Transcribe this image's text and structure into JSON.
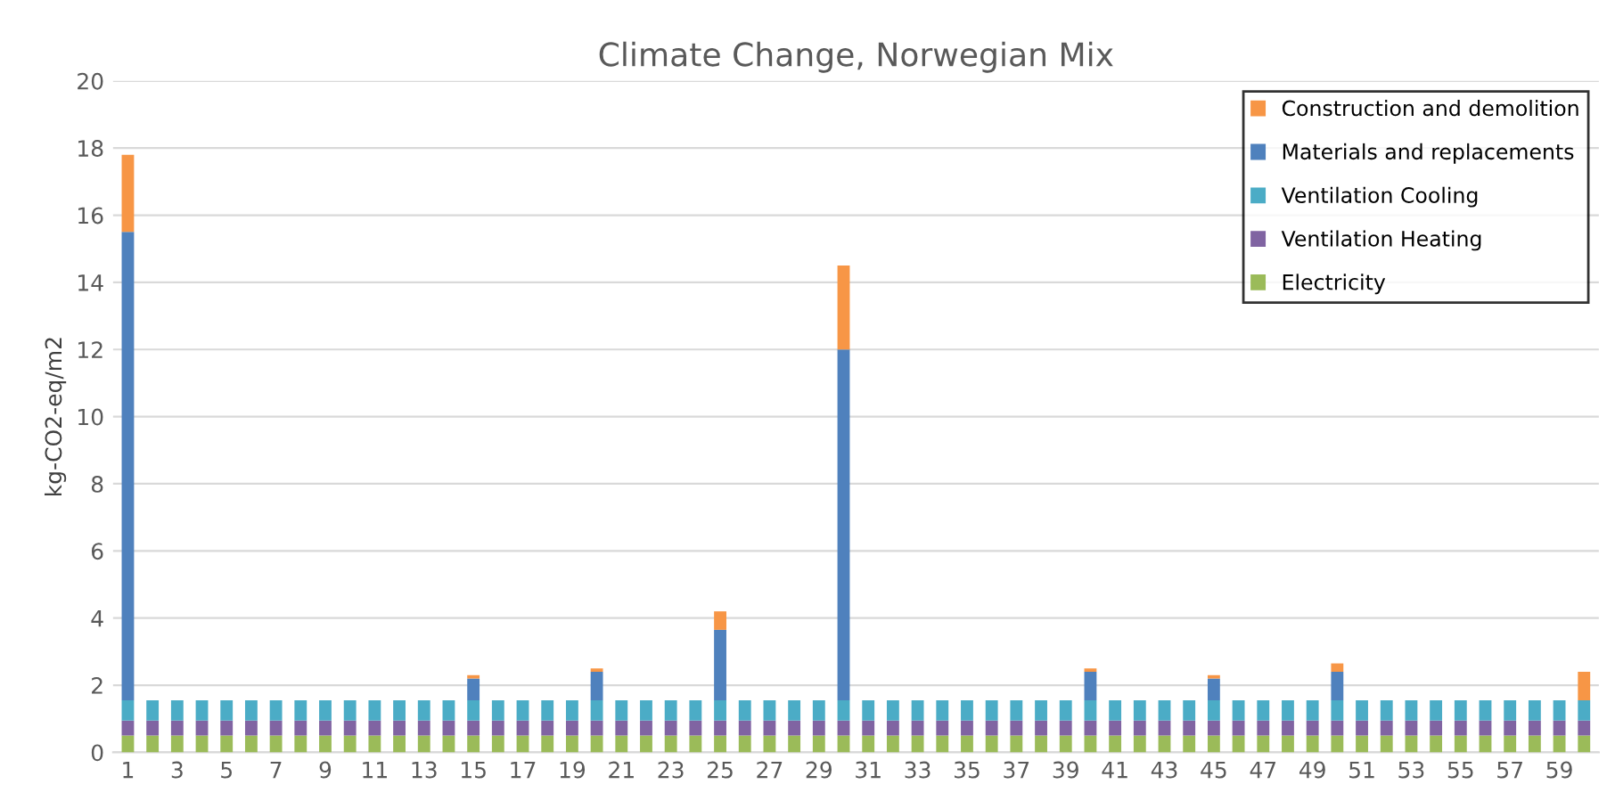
{
  "chart_data": {
    "type": "bar",
    "title": "Climate Change, Norwegian Mix",
    "ylabel": "kg-CO2-eq/m2",
    "stacked": true,
    "categories": [
      "1",
      null,
      "3",
      null,
      "5",
      null,
      "7",
      null,
      "9",
      null,
      "11",
      null,
      "13",
      null,
      "15",
      null,
      "17",
      null,
      "19",
      null,
      "21",
      null,
      "23",
      null,
      "25",
      null,
      "27",
      null,
      "29",
      null,
      "31",
      null,
      "33",
      null,
      "35",
      null,
      "37",
      null,
      "39",
      null,
      "41",
      null,
      "43",
      null,
      "45",
      null,
      "47",
      null,
      "49",
      null,
      "51",
      null,
      "53",
      null,
      "55",
      null,
      "57",
      null,
      "59",
      null
    ],
    "series": [
      {
        "name": "Electricity",
        "color": "#9bbb59",
        "values": [
          0.5,
          0.5,
          0.5,
          0.5,
          0.5,
          0.5,
          0.5,
          0.5,
          0.5,
          0.5,
          0.5,
          0.5,
          0.5,
          0.5,
          0.5,
          0.5,
          0.5,
          0.5,
          0.5,
          0.5,
          0.5,
          0.5,
          0.5,
          0.5,
          0.5,
          0.5,
          0.5,
          0.5,
          0.5,
          0.5,
          0.5,
          0.5,
          0.5,
          0.5,
          0.5,
          0.5,
          0.5,
          0.5,
          0.5,
          0.5,
          0.5,
          0.5,
          0.5,
          0.5,
          0.5,
          0.5,
          0.5,
          0.5,
          0.5,
          0.5,
          0.5,
          0.5,
          0.5,
          0.5,
          0.5,
          0.5,
          0.5,
          0.5,
          0.5,
          0.5
        ]
      },
      {
        "name": "Ventilation Heating",
        "color": "#8064a2",
        "values": [
          0.45,
          0.45,
          0.45,
          0.45,
          0.45,
          0.45,
          0.45,
          0.45,
          0.45,
          0.45,
          0.45,
          0.45,
          0.45,
          0.45,
          0.45,
          0.45,
          0.45,
          0.45,
          0.45,
          0.45,
          0.45,
          0.45,
          0.45,
          0.45,
          0.45,
          0.45,
          0.45,
          0.45,
          0.45,
          0.45,
          0.45,
          0.45,
          0.45,
          0.45,
          0.45,
          0.45,
          0.45,
          0.45,
          0.45,
          0.45,
          0.45,
          0.45,
          0.45,
          0.45,
          0.45,
          0.45,
          0.45,
          0.45,
          0.45,
          0.45,
          0.45,
          0.45,
          0.45,
          0.45,
          0.45,
          0.45,
          0.45,
          0.45,
          0.45,
          0.45
        ]
      },
      {
        "name": "Ventilation Cooling",
        "color": "#4bacc6",
        "values": [
          0.6,
          0.6,
          0.6,
          0.6,
          0.6,
          0.6,
          0.6,
          0.6,
          0.6,
          0.6,
          0.6,
          0.6,
          0.6,
          0.6,
          0.6,
          0.6,
          0.6,
          0.6,
          0.6,
          0.6,
          0.6,
          0.6,
          0.6,
          0.6,
          0.6,
          0.6,
          0.6,
          0.6,
          0.6,
          0.6,
          0.6,
          0.6,
          0.6,
          0.6,
          0.6,
          0.6,
          0.6,
          0.6,
          0.6,
          0.6,
          0.6,
          0.6,
          0.6,
          0.6,
          0.6,
          0.6,
          0.6,
          0.6,
          0.6,
          0.6,
          0.6,
          0.6,
          0.6,
          0.6,
          0.6,
          0.6,
          0.6,
          0.6,
          0.6,
          0.6
        ]
      },
      {
        "name": "Materials and replacements",
        "color": "#4f81bd",
        "values": [
          13.95,
          0,
          0,
          0,
          0,
          0,
          0,
          0,
          0,
          0,
          0,
          0,
          0,
          0,
          0.65,
          0,
          0,
          0,
          0,
          0.85,
          0,
          0,
          0,
          0,
          2.1,
          0,
          0,
          0,
          0,
          10.45,
          0,
          0,
          0,
          0,
          0,
          0,
          0,
          0,
          0,
          0.85,
          0,
          0,
          0,
          0,
          0.65,
          0,
          0,
          0,
          0,
          0.85,
          0,
          0,
          0,
          0,
          0,
          0,
          0,
          0,
          0,
          0
        ]
      },
      {
        "name": "Construction and demolition",
        "color": "#f79646",
        "values": [
          2.3,
          0,
          0,
          0,
          0,
          0,
          0,
          0,
          0,
          0,
          0,
          0,
          0,
          0,
          0.1,
          0,
          0,
          0,
          0,
          0.1,
          0,
          0,
          0,
          0,
          0.55,
          0,
          0,
          0,
          0,
          2.5,
          0,
          0,
          0,
          0,
          0,
          0,
          0,
          0,
          0,
          0.1,
          0,
          0,
          0,
          0,
          0.1,
          0,
          0,
          0,
          0,
          0.25,
          0,
          0,
          0,
          0,
          0,
          0,
          0,
          0,
          0,
          0.85
        ]
      }
    ],
    "ylim": [
      0,
      20
    ],
    "yticks": [
      0,
      2,
      4,
      6,
      8,
      10,
      12,
      14,
      16,
      18,
      20
    ],
    "grid": "y",
    "legend": "top right"
  }
}
